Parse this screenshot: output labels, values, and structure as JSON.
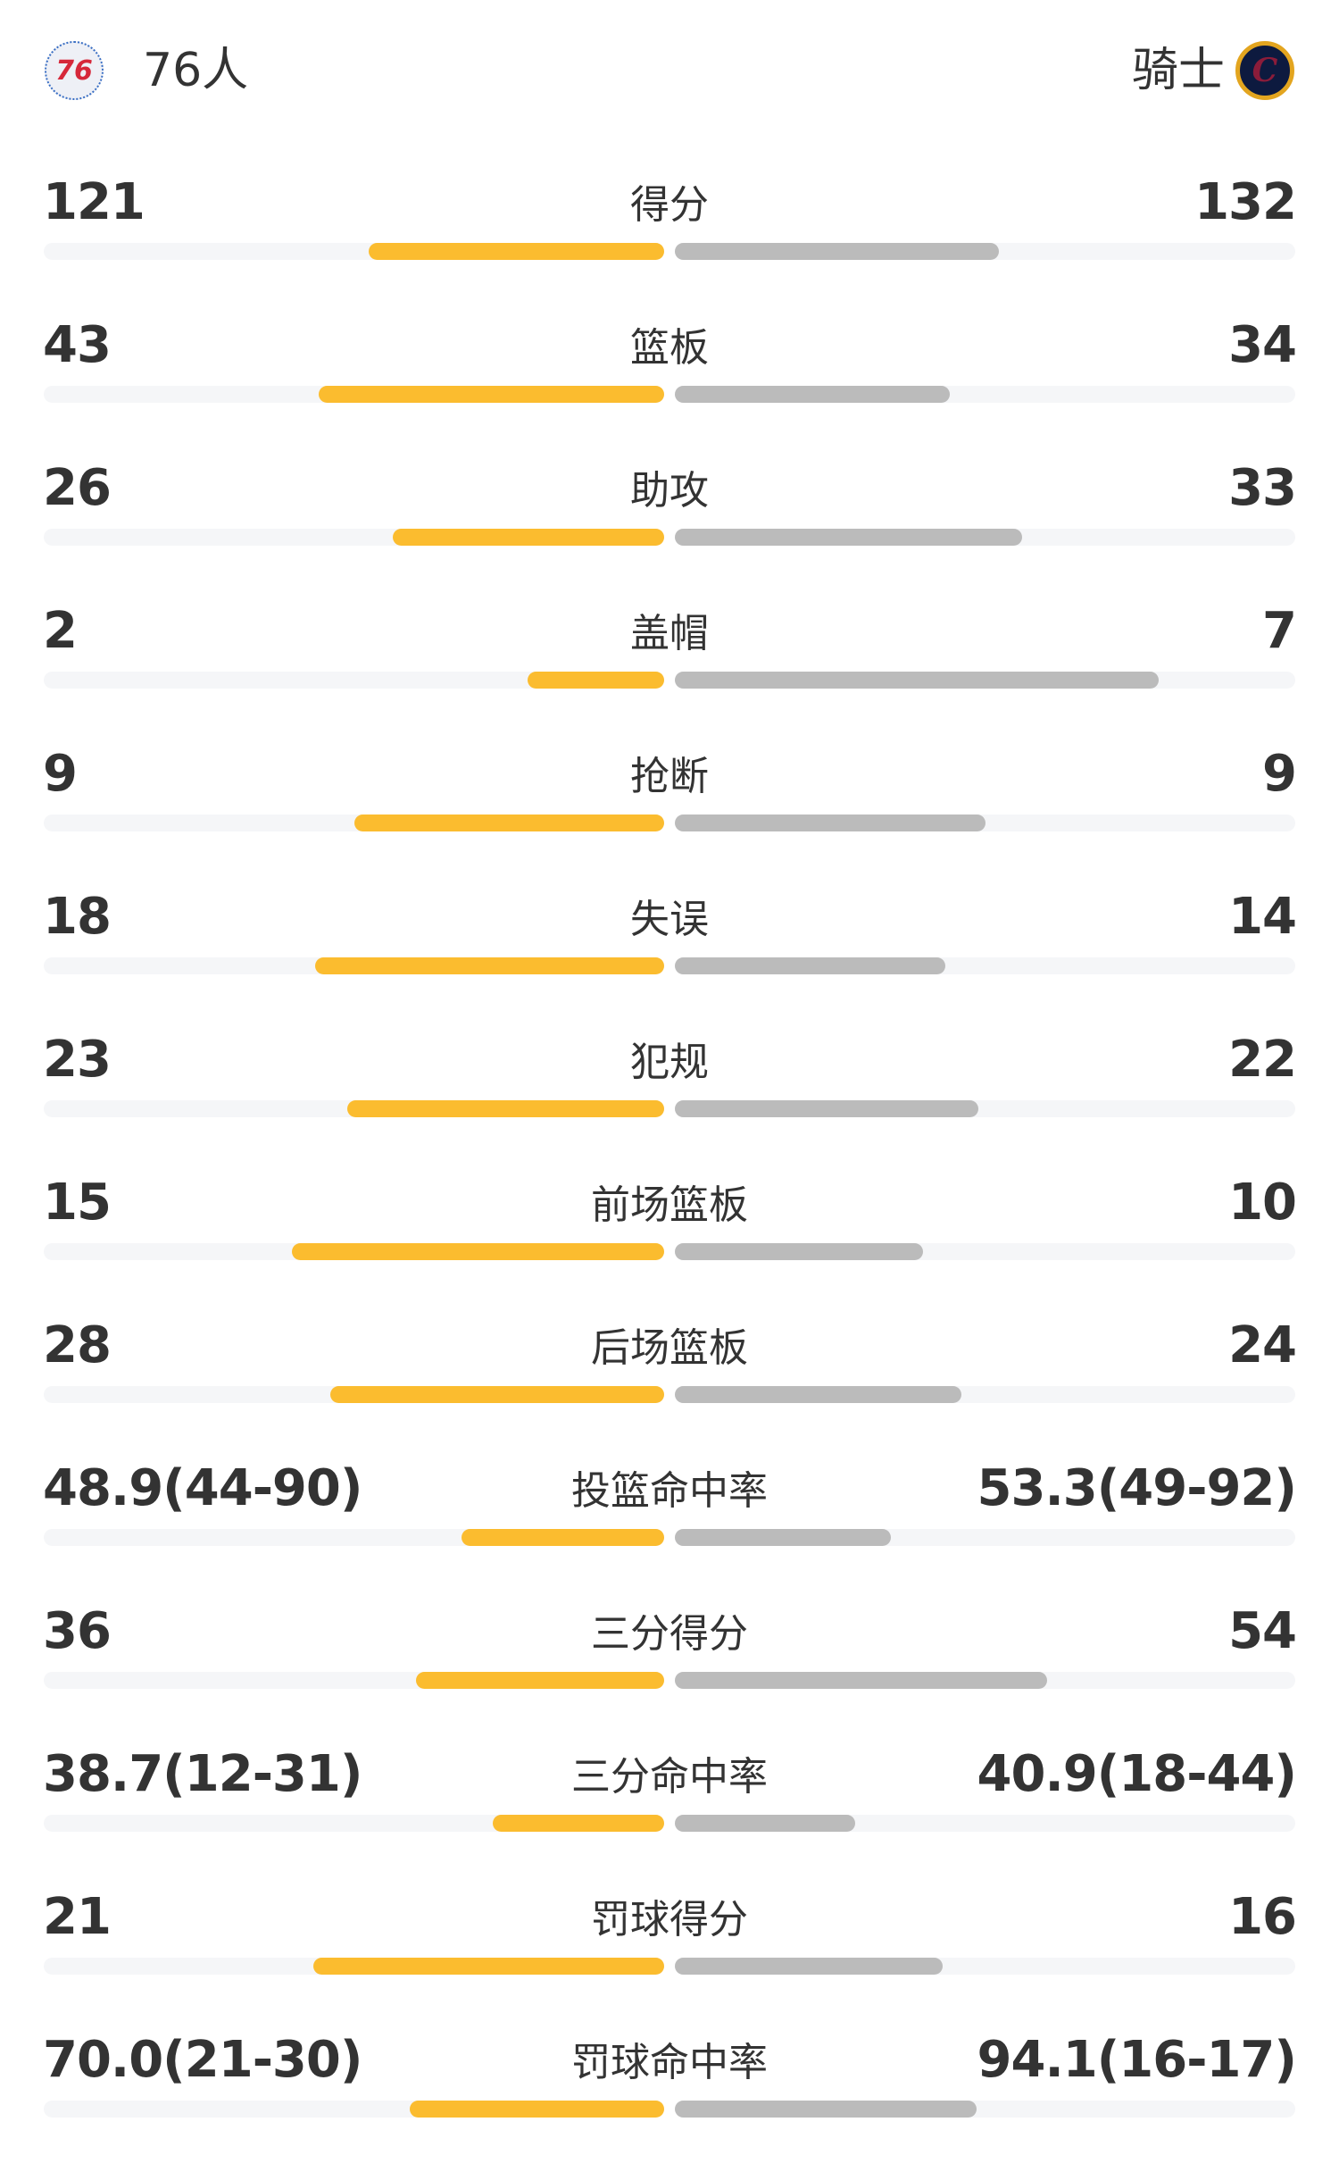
{
  "header": {
    "left_team": {
      "name": "76人",
      "logo": "76ers-logo",
      "logo_text": "76"
    },
    "right_team": {
      "name": "骑士",
      "logo": "cavaliers-logo",
      "logo_text": "C"
    }
  },
  "colors": {
    "left_bar": "#fbbc2f",
    "right_bar": "#bbbbbb",
    "track": "#f5f6f8"
  },
  "stats": [
    {
      "label": "得分",
      "left": "121",
      "right": "132",
      "left_fill": 0.476,
      "right_fill": 0.522
    },
    {
      "label": "篮板",
      "left": "43",
      "right": "34",
      "left_fill": 0.557,
      "right_fill": 0.443
    },
    {
      "label": "助攻",
      "left": "26",
      "right": "33",
      "left_fill": 0.438,
      "right_fill": 0.56
    },
    {
      "label": "盖帽",
      "left": "2",
      "right": "7",
      "left_fill": 0.22,
      "right_fill": 0.78
    },
    {
      "label": "抢断",
      "left": "9",
      "right": "9",
      "left_fill": 0.5,
      "right_fill": 0.5
    },
    {
      "label": "失误",
      "left": "18",
      "right": "14",
      "left_fill": 0.562,
      "right_fill": 0.436
    },
    {
      "label": "犯规",
      "left": "23",
      "right": "22",
      "left_fill": 0.511,
      "right_fill": 0.489
    },
    {
      "label": "前场篮板",
      "left": "15",
      "right": "10",
      "left_fill": 0.6,
      "right_fill": 0.4
    },
    {
      "label": "后场篮板",
      "left": "28",
      "right": "24",
      "left_fill": 0.538,
      "right_fill": 0.462
    },
    {
      "label": "投篮命中率",
      "left": "48.9(44-90)",
      "right": "53.3(49-92)",
      "left_fill": 0.326,
      "right_fill": 0.348
    },
    {
      "label": "三分得分",
      "left": "36",
      "right": "54",
      "left_fill": 0.4,
      "right_fill": 0.6
    },
    {
      "label": "三分命中率",
      "left": "38.7(12-31)",
      "right": "40.9(18-44)",
      "left_fill": 0.277,
      "right_fill": 0.29
    },
    {
      "label": "罚球得分",
      "left": "21",
      "right": "16",
      "left_fill": 0.566,
      "right_fill": 0.432
    },
    {
      "label": "罚球命中率",
      "left": "70.0(21-30)",
      "right": "94.1(16-17)",
      "left_fill": 0.41,
      "right_fill": 0.487
    }
  ]
}
